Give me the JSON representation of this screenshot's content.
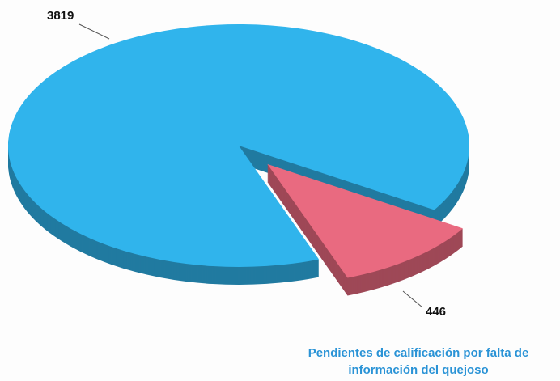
{
  "chart_data": {
    "type": "pie",
    "categories": [
      null,
      "Pendientes de calificación por falta de información del quejoso"
    ],
    "values": [
      3819,
      446
    ],
    "colors": [
      "#30b4ec",
      "#e96a80"
    ]
  }
}
